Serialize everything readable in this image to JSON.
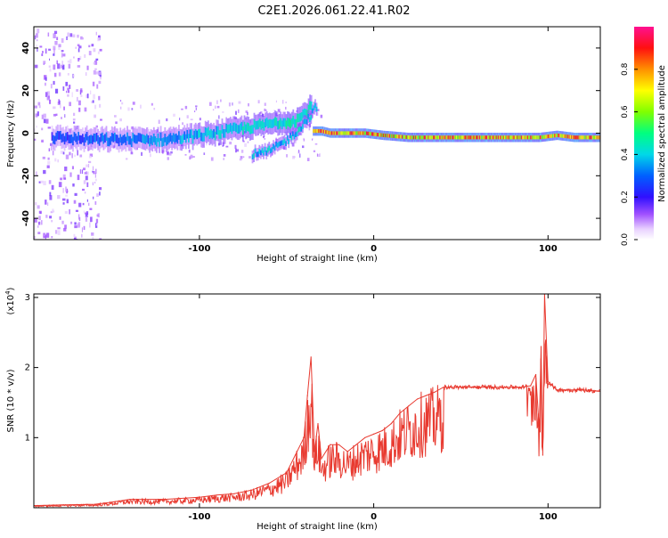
{
  "page": {
    "title": "C2E1.2026.061.22.41.R02"
  },
  "chart_data": [
    {
      "type": "heatmap",
      "xlabel": "Height of straight line (km)",
      "ylabel": "Frequency (Hz)",
      "xlim": [
        -195,
        130
      ],
      "ylim": [
        -50,
        50
      ],
      "xticks": [
        -100,
        0,
        100
      ],
      "yticks": [
        -40,
        -20,
        0,
        20,
        40
      ],
      "grid": false,
      "colorbar": {
        "label": "Normalized spectral amplitude",
        "range": [
          0,
          1
        ],
        "ticks": [
          "0.0",
          "0.2",
          "0.4",
          "0.6",
          "0.8"
        ],
        "tick_values": [
          0,
          0.2,
          0.4,
          0.6,
          0.8
        ]
      },
      "tracks": [
        {
          "name": "noisy-branch",
          "x": [
            -185,
            -160,
            -140,
            -120,
            -100,
            -85,
            -70,
            -55,
            -45,
            -40,
            -36
          ],
          "y": [
            -2,
            -3,
            -3,
            -3,
            -1,
            1,
            3,
            5,
            6,
            9,
            13
          ],
          "amplitude": 0.3
        },
        {
          "name": "diagonal-branch",
          "x": [
            -70,
            -62,
            -55,
            -48,
            -42,
            -36,
            -33
          ],
          "y": [
            -10,
            -9,
            -6,
            -2,
            3,
            9,
            13
          ],
          "amplitude": 0.35
        },
        {
          "name": "main-line",
          "x": [
            -35,
            -30,
            -25,
            -15,
            -5,
            5,
            20,
            40,
            60,
            80,
            90,
            95,
            105,
            115,
            130
          ],
          "y": [
            1,
            1,
            0,
            0,
            0,
            -1,
            -2,
            -2,
            -2,
            -2,
            -2,
            -2,
            -1,
            -2,
            -2
          ],
          "amplitude": 0.9
        }
      ]
    },
    {
      "type": "line",
      "xlabel": "Height of straight line (km)",
      "ylabel": "SNR (10 * v/v)",
      "y_multiplier": "(x10",
      "y_multiplier_exp": "4",
      "y_multiplier_close": ")",
      "xlim": [
        -195,
        130
      ],
      "ylim": [
        0,
        3.05
      ],
      "xticks": [
        -100,
        0,
        100
      ],
      "yticks": [
        1,
        2,
        3
      ],
      "grid": false,
      "series": [
        {
          "name": "SNR",
          "color": "#e83a30",
          "x": [
            -195,
            -180,
            -160,
            -150,
            -140,
            -120,
            -100,
            -90,
            -80,
            -70,
            -60,
            -50,
            -45,
            -40,
            -38,
            -36,
            -34,
            -32,
            -30,
            -25,
            -20,
            -15,
            -10,
            -5,
            0,
            5,
            10,
            15,
            20,
            25,
            30,
            35,
            40,
            50,
            60,
            70,
            80,
            85,
            90,
            93,
            95,
            96,
            97,
            98,
            100,
            105,
            110,
            120,
            130
          ],
          "y": [
            0.03,
            0.04,
            0.05,
            0.08,
            0.12,
            0.12,
            0.15,
            0.18,
            0.2,
            0.25,
            0.35,
            0.5,
            0.75,
            1.0,
            1.6,
            2.15,
            0.8,
            1.2,
            0.7,
            0.9,
            0.9,
            0.8,
            0.9,
            1.0,
            1.05,
            1.1,
            1.2,
            1.35,
            1.45,
            1.55,
            1.6,
            1.65,
            1.72,
            1.72,
            1.72,
            1.72,
            1.72,
            1.72,
            1.74,
            1.9,
            1.1,
            2.3,
            0.75,
            3.05,
            1.8,
            1.68,
            1.68,
            1.68,
            1.66
          ]
        }
      ]
    }
  ]
}
